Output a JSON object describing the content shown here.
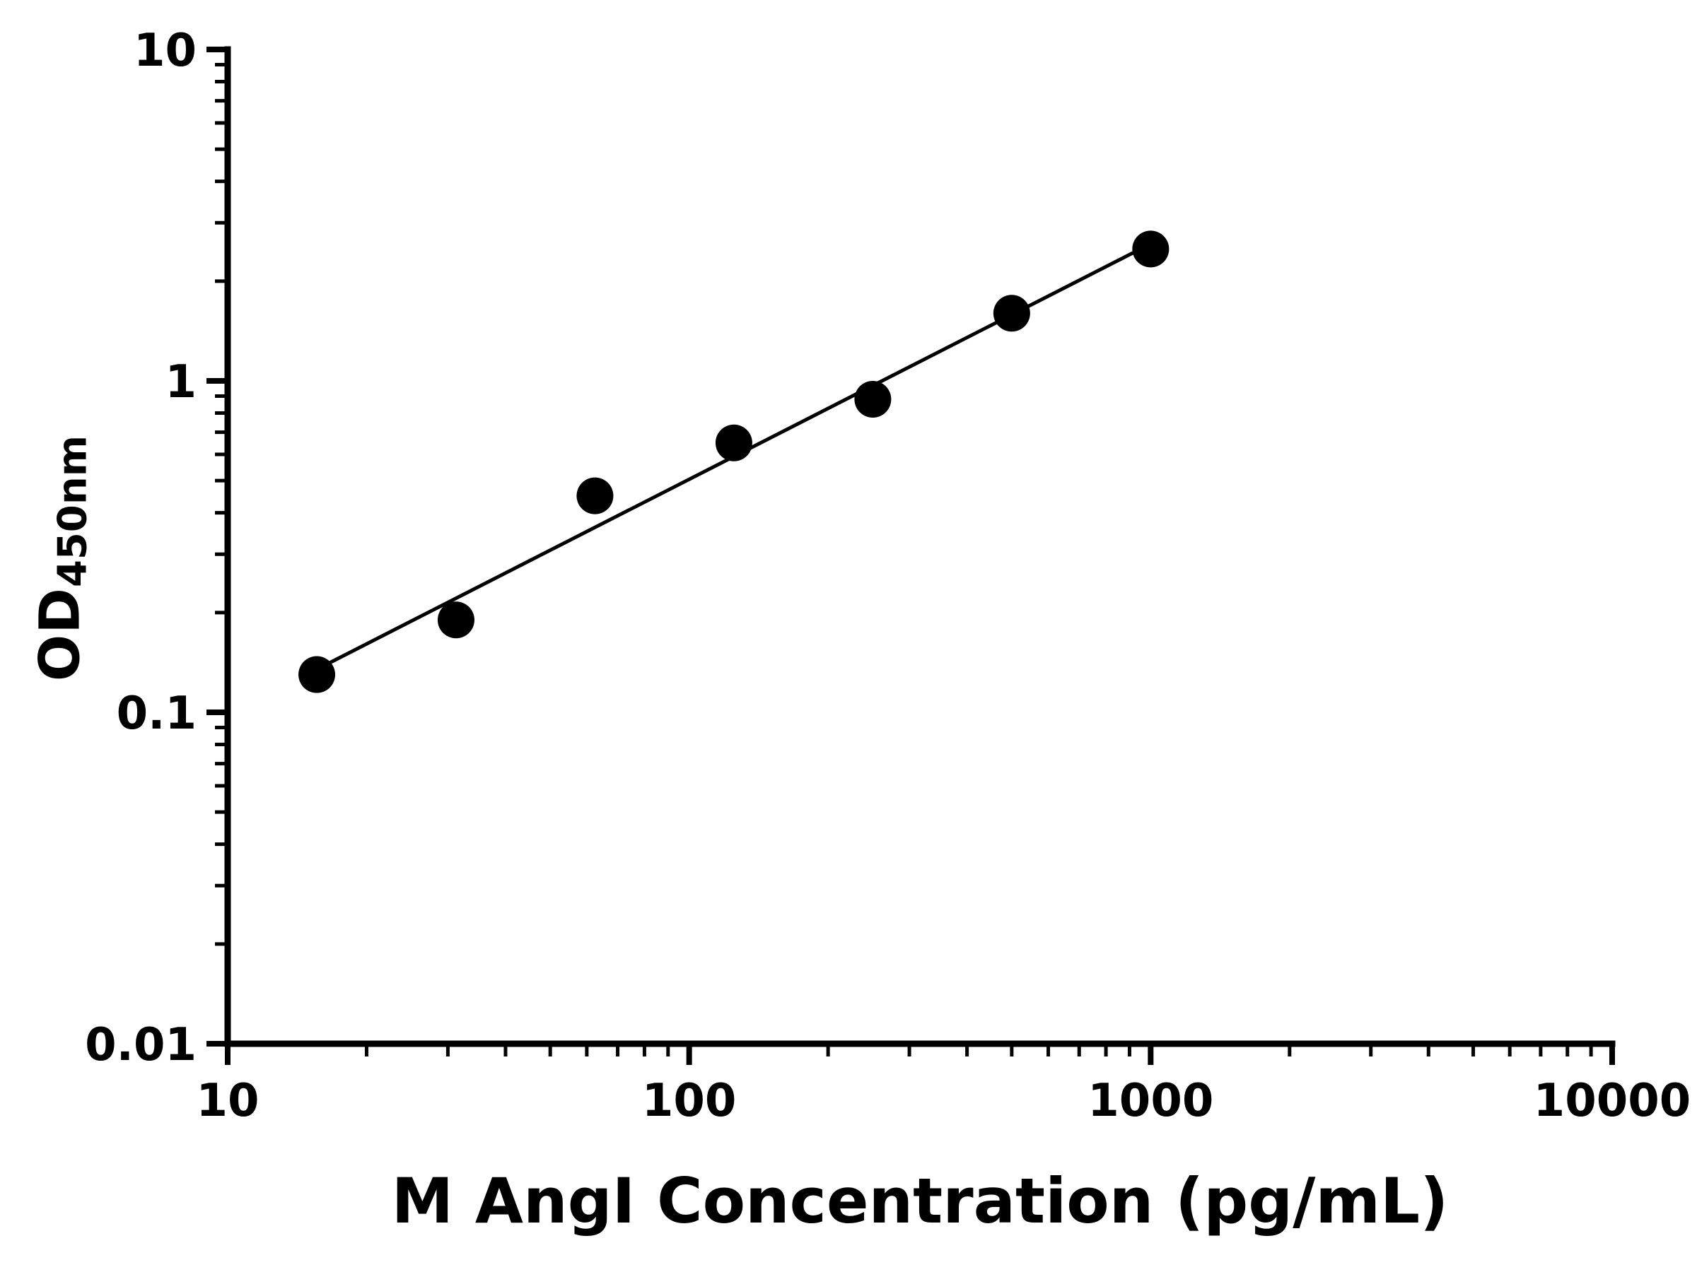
{
  "page": {
    "background_color": "#ffffff",
    "foreground_color": "#000000"
  },
  "chart_data": {
    "type": "scatter",
    "title": "",
    "xlabel": "M AngI Concentration (pg/mL)",
    "ylabel_main": "OD",
    "ylabel_sub": "450nm",
    "x_scale": "log",
    "y_scale": "log",
    "xlim": [
      10,
      10000
    ],
    "ylim": [
      0.01,
      10
    ],
    "grid": false,
    "legend": null,
    "axis_color": "#000000",
    "line_color": "#000000",
    "marker": {
      "shape": "circle",
      "color": "#000000"
    },
    "x_ticks": [
      {
        "value": 10,
        "label": "10"
      },
      {
        "value": 100,
        "label": "100"
      },
      {
        "value": 1000,
        "label": "1000"
      },
      {
        "value": 10000,
        "label": "10000"
      }
    ],
    "y_ticks": [
      {
        "value": 0.01,
        "label": "0.01"
      },
      {
        "value": 0.1,
        "label": "0.1"
      },
      {
        "value": 1,
        "label": "1"
      },
      {
        "value": 10,
        "label": "10"
      }
    ],
    "points": [
      {
        "x": 15.6,
        "y": 0.13
      },
      {
        "x": 31.25,
        "y": 0.19
      },
      {
        "x": 62.5,
        "y": 0.45
      },
      {
        "x": 125,
        "y": 0.65
      },
      {
        "x": 250,
        "y": 0.88
      },
      {
        "x": 500,
        "y": 1.6
      },
      {
        "x": 1000,
        "y": 2.5
      }
    ],
    "trendline": {
      "type": "power-fit",
      "x1": 14.5,
      "y1": 0.128,
      "x2": 1010,
      "y2": 2.61
    }
  }
}
